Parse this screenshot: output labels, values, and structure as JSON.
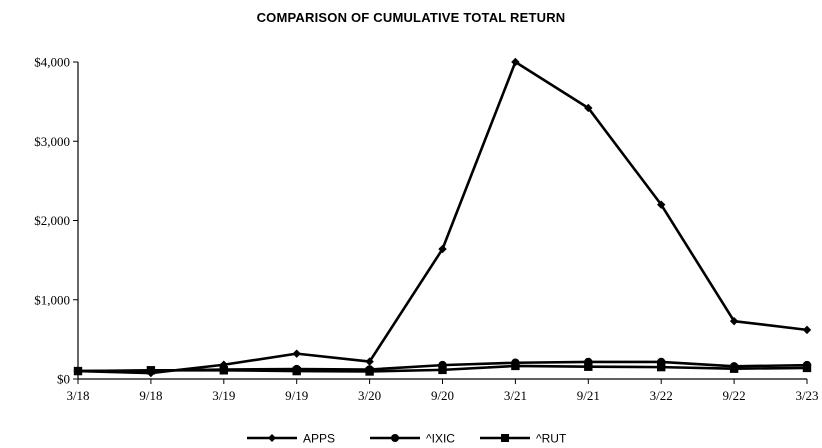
{
  "chart_data": {
    "type": "line",
    "title": "COMPARISON OF CUMULATIVE TOTAL RETURN",
    "xlabel": "",
    "ylabel": "",
    "x": [
      "3/18",
      "9/18",
      "3/19",
      "9/19",
      "3/20",
      "9/20",
      "3/21",
      "9/21",
      "3/22",
      "9/22",
      "3/23"
    ],
    "y_ticks": [
      "$0",
      "$1,000",
      "$2,000",
      "$3,000",
      "$4,000"
    ],
    "ylim": [
      0,
      4000
    ],
    "grid": false,
    "legend_position": "bottom",
    "series": [
      {
        "name": "APPS",
        "marker": "diamond",
        "values": [
          100,
          75,
          180,
          320,
          220,
          1640,
          4000,
          3420,
          2200,
          730,
          620
        ]
      },
      {
        "name": "^IXIC",
        "marker": "circle",
        "values": [
          100,
          105,
          120,
          125,
          120,
          175,
          205,
          215,
          215,
          160,
          175
        ]
      },
      {
        "name": "^RUT",
        "marker": "square",
        "values": [
          100,
          110,
          110,
          100,
          95,
          115,
          165,
          155,
          150,
          130,
          140
        ]
      }
    ],
    "colors": {
      "line": "#000000"
    }
  }
}
